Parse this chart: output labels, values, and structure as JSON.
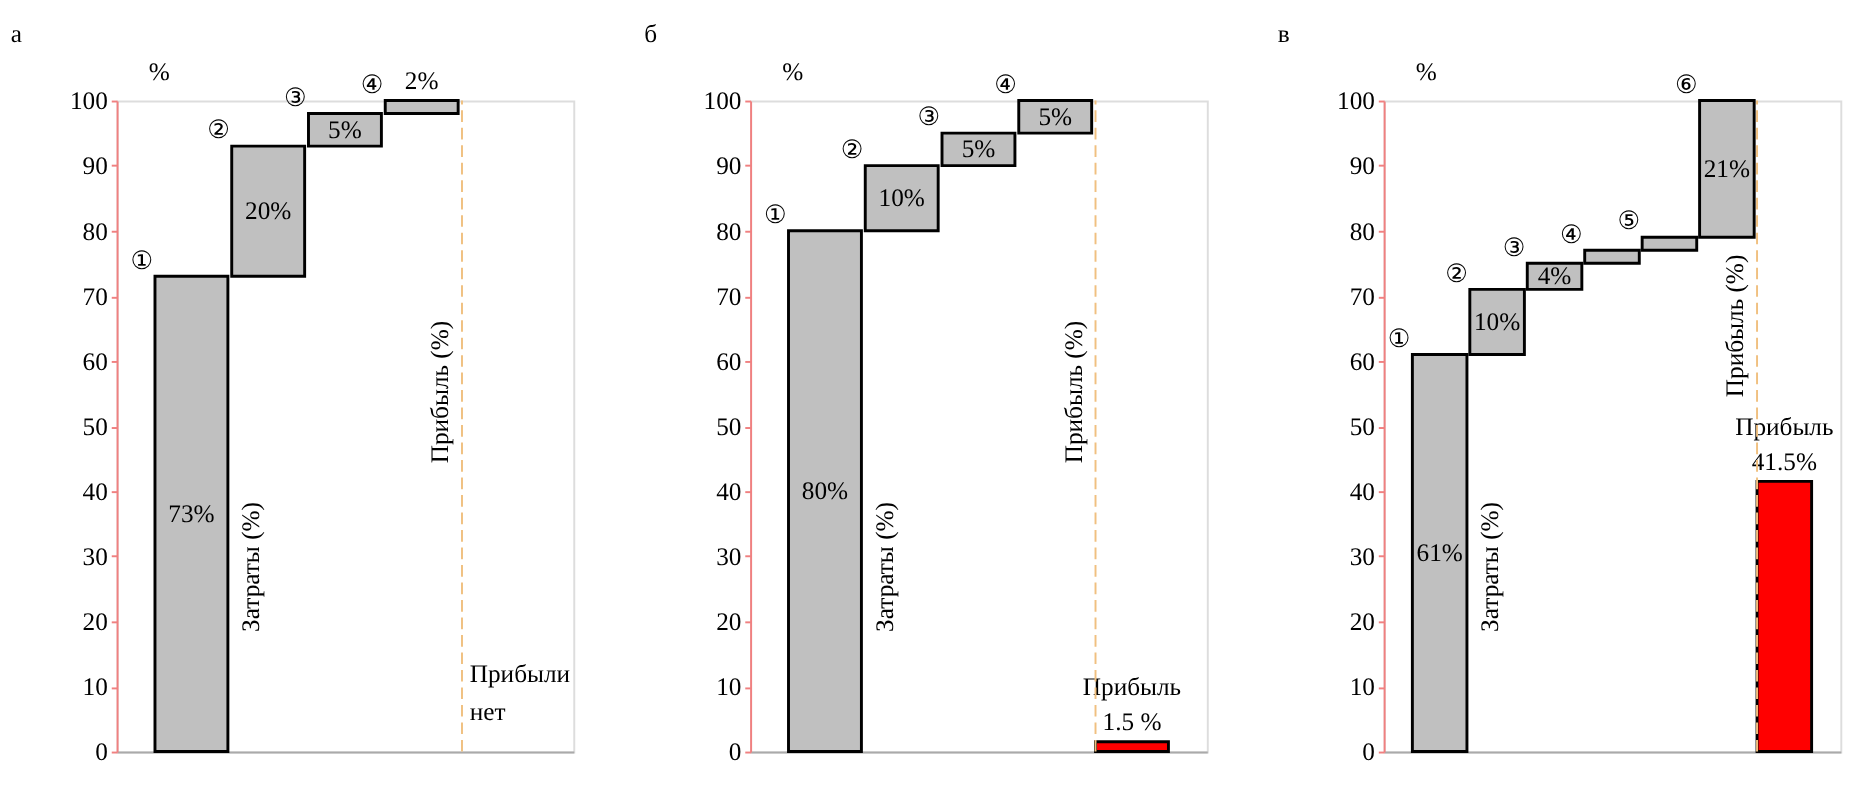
{
  "chart_data": [
    {
      "type": "bar",
      "title": "а",
      "ylabel": "%",
      "ylim": [
        0,
        100
      ],
      "yticks": [
        0,
        10,
        20,
        30,
        40,
        50,
        60,
        70,
        80,
        90,
        100
      ],
      "grid": false,
      "categories": [
        null,
        null,
        null,
        null,
        null
      ],
      "values": [
        73,
        20,
        5,
        2,
        null
      ],
      "base": [
        0,
        73,
        93,
        98,
        null
      ],
      "colors": [
        "#c0c0c0",
        "#c0c0c0",
        "#c0c0c0",
        "#c0c0c0",
        "#ff0000"
      ],
      "value_labels": [
        "73%",
        "20%",
        "5%",
        "2%",
        null
      ],
      "ref_lines": [
        {
          "axis": "x",
          "label": "Прибыль (%)",
          "color": "#f0c080",
          "line_style": "dashed"
        }
      ],
      "annotations": [
        "①",
        "②",
        "③",
        "④",
        "Затраты (%)",
        "Прибыли нет"
      ]
    },
    {
      "type": "bar",
      "title": "б",
      "ylabel": "%",
      "ylim": [
        0,
        100
      ],
      "yticks": [
        0,
        10,
        20,
        30,
        40,
        50,
        60,
        70,
        80,
        90,
        100
      ],
      "grid": false,
      "categories": [
        null,
        null,
        null,
        null,
        null
      ],
      "values": [
        80,
        10,
        5,
        5,
        1.5
      ],
      "base": [
        0,
        80,
        90,
        95,
        0
      ],
      "colors": [
        "#c0c0c0",
        "#c0c0c0",
        "#c0c0c0",
        "#c0c0c0",
        "#ff0000"
      ],
      "value_labels": [
        "80%",
        "10%",
        "5%",
        "5%",
        "Прибыль\n1.5 %"
      ],
      "ref_lines": [
        {
          "axis": "x",
          "label": "Прибыль (%)",
          "color": "#f0c080",
          "line_style": "dashed"
        }
      ],
      "annotations": [
        "①",
        "②",
        "③",
        "④",
        "Затраты (%)"
      ]
    },
    {
      "type": "bar",
      "title": "в",
      "ylabel": "%",
      "ylim": [
        0,
        100
      ],
      "yticks": [
        0,
        10,
        20,
        30,
        40,
        50,
        60,
        70,
        80,
        90,
        100
      ],
      "grid": false,
      "categories": [
        null,
        null,
        null,
        null,
        null,
        null,
        null
      ],
      "values": [
        61,
        10,
        4,
        2,
        2,
        21,
        41.5
      ],
      "base": [
        0,
        61,
        71,
        75,
        77,
        79,
        0
      ],
      "colors": [
        "#c0c0c0",
        "#c0c0c0",
        "#c0c0c0",
        "#c0c0c0",
        "#c0c0c0",
        "#c0c0c0",
        "#ff0000"
      ],
      "value_labels": [
        "61%",
        "10%",
        "4%",
        null,
        null,
        "21%",
        "Прибыль\n41.5%"
      ],
      "ref_lines": [
        {
          "axis": "x",
          "label": "Прибыль (%)",
          "color": "#f0c080",
          "line_style": "dashed"
        }
      ],
      "annotations": [
        "①",
        "②",
        "③",
        "④",
        "⑤",
        "⑥",
        "Затраты (%)"
      ]
    }
  ]
}
